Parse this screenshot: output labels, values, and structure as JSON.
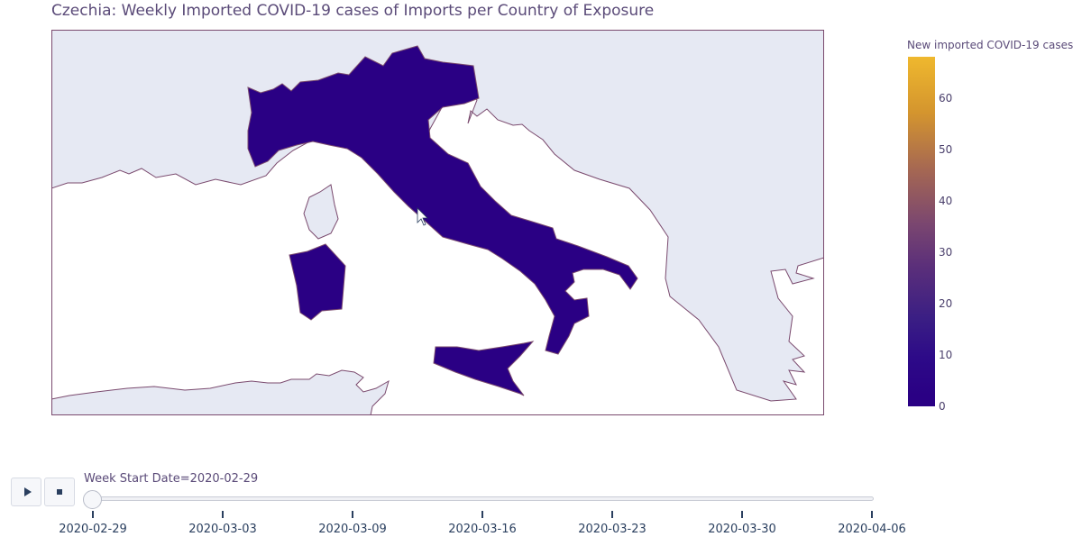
{
  "title": "Czechia: Weekly Imported COVID-19 cases of Imports per Country of Exposure",
  "colorbar": {
    "title": "New imported COVID-19 cases",
    "ticks": [
      "0",
      "10",
      "20",
      "30",
      "40",
      "50",
      "60"
    ],
    "tick_values": [
      0,
      10,
      20,
      30,
      40,
      50,
      60
    ],
    "range": [
      0,
      68
    ],
    "colors": {
      "low": "#2a0084",
      "high": "#efb82e"
    }
  },
  "map": {
    "highlighted_country": "Italy",
    "highlight_color": "#2a0084",
    "land_color": "#e6e9f3",
    "border_color": "#7a4a6e"
  },
  "controls": {
    "play_icon": "play-icon",
    "stop_icon": "stop-icon"
  },
  "slider": {
    "prefix": "Week Start Date=",
    "current_value": "2020-02-29",
    "current_label": "Week Start Date=2020-02-29",
    "dates": [
      "2020-02-29",
      "2020-03-03",
      "2020-03-09",
      "2020-03-16",
      "2020-03-23",
      "2020-03-30",
      "2020-04-06"
    ],
    "selected_index": 0
  }
}
